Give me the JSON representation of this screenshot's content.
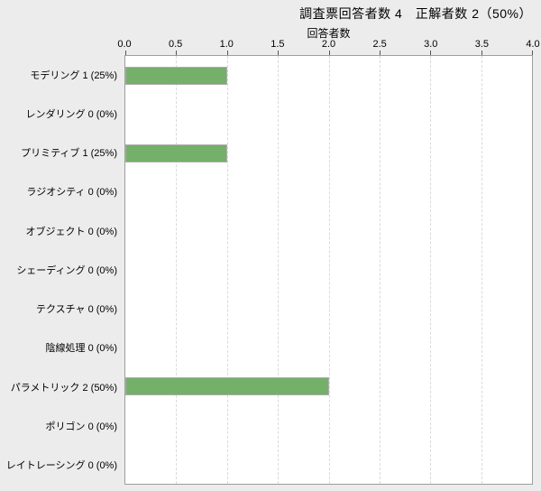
{
  "header": {
    "title": "調査票回答者数 4　正解者数 2（50%）"
  },
  "chart_data": {
    "type": "bar",
    "orientation": "horizontal",
    "title": "調査票回答者数 4　正解者数 2（50%）",
    "xlabel": "回答者数",
    "ylabel": "",
    "xlim": [
      0,
      4
    ],
    "xticks": [
      "0.0",
      "0.5",
      "1.0",
      "1.5",
      "2.0",
      "2.5",
      "3.0",
      "3.5",
      "4.0"
    ],
    "grid": "vertical-dashed",
    "legend": "none",
    "categories": [
      "モデリング",
      "レンダリング",
      "プリミティブ",
      "ラジオシティ",
      "オブジェクト",
      "シェーディング",
      "テクスチャ",
      "陰線処理",
      "パラメトリック",
      "ポリゴン",
      "レイトレーシング"
    ],
    "category_labels": [
      "モデリング 1 (25%)",
      "レンダリング 0 (0%)",
      "プリミティブ 1 (25%)",
      "ラジオシティ 0 (0%)",
      "オブジェクト 0 (0%)",
      "シェーディング 0 (0%)",
      "テクスチャ 0 (0%)",
      "陰線処理 0 (0%)",
      "パラメトリック 2 (50%)",
      "ポリゴン 0 (0%)",
      "レイトレーシング 0 (0%)"
    ],
    "values": [
      1,
      0,
      1,
      0,
      0,
      0,
      0,
      0,
      2,
      0,
      0
    ],
    "percentages": [
      "25%",
      "0%",
      "25%",
      "0%",
      "0%",
      "0%",
      "0%",
      "0%",
      "50%",
      "0%",
      "0%"
    ]
  },
  "colors": {
    "background": "#ececec",
    "plot_background": "#ffffff",
    "plot_border": "#9e9e9e",
    "gridline": "#d9d9d9",
    "bar_fill": "#74b06a",
    "bar_border": "#adadad",
    "text": "#000000",
    "tick_color": "#555555"
  }
}
